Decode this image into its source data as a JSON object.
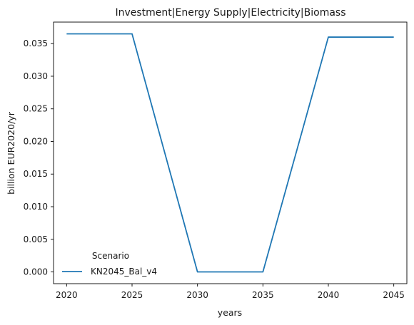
{
  "chart_data": {
    "type": "line",
    "title": "Investment|Energy Supply|Electricity|Biomass",
    "xlabel": "years",
    "ylabel": "billion EUR2020/yr",
    "x": [
      2020,
      2025,
      2030,
      2035,
      2040,
      2045
    ],
    "series": [
      {
        "name": "KN2045_Bal_v4",
        "color": "#1f77b4",
        "values": [
          0.0365,
          0.0365,
          0.0,
          0.0,
          0.036,
          0.036
        ]
      }
    ],
    "xticks": [
      "2020",
      "2025",
      "2030",
      "2035",
      "2040",
      "2045"
    ],
    "yticks": [
      "0.000",
      "0.005",
      "0.010",
      "0.015",
      "0.020",
      "0.025",
      "0.030",
      "0.035"
    ],
    "xlim": [
      2019,
      2046
    ],
    "ylim": [
      -0.0018,
      0.0383
    ],
    "grid": false,
    "legend": {
      "title": "Scenario",
      "placement": "lower-left"
    }
  }
}
